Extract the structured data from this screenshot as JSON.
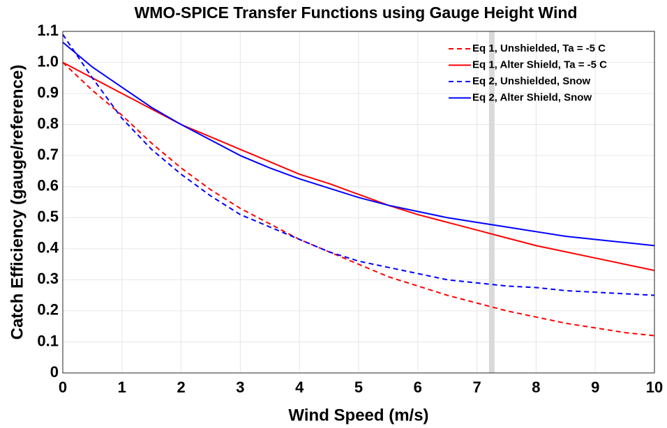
{
  "chart_data": {
    "type": "line",
    "title": "WMO-SPICE Transfer Functions using Gauge Height Wind",
    "x_label": "Wind Speed (m/s)",
    "y_label": "Catch Efficiency (gauge/reference)",
    "x": [
      0,
      0.5,
      1,
      1.5,
      2,
      2.5,
      3,
      3.5,
      4,
      4.5,
      5,
      5.5,
      6,
      6.5,
      7,
      7.5,
      8,
      8.5,
      9,
      9.5,
      10
    ],
    "series": [
      {
        "name": "Eq 1, Unshielded, Ta = -5 C",
        "color": "#ff0000",
        "dashed": true,
        "values": [
          1.0,
          0.91,
          0.83,
          0.74,
          0.66,
          0.59,
          0.53,
          0.48,
          0.43,
          0.39,
          0.35,
          0.31,
          0.28,
          0.25,
          0.225,
          0.2,
          0.18,
          0.16,
          0.145,
          0.13,
          0.12
        ]
      },
      {
        "name": "Eq 1, Alter Shield, Ta = -5 C",
        "color": "#ff0000",
        "dashed": false,
        "values": [
          1.0,
          0.95,
          0.9,
          0.85,
          0.8,
          0.76,
          0.72,
          0.68,
          0.64,
          0.61,
          0.575,
          0.54,
          0.51,
          0.485,
          0.46,
          0.435,
          0.41,
          0.39,
          0.37,
          0.35,
          0.33
        ]
      },
      {
        "name": "Eq 2, Unshielded, Snow",
        "color": "#0000ff",
        "dashed": true,
        "values": [
          1.09,
          0.95,
          0.82,
          0.72,
          0.64,
          0.57,
          0.51,
          0.47,
          0.43,
          0.39,
          0.36,
          0.34,
          0.32,
          0.3,
          0.29,
          0.28,
          0.275,
          0.265,
          0.26,
          0.255,
          0.25
        ]
      },
      {
        "name": "Eq 2, Alter Shield, Snow",
        "color": "#0000ff",
        "dashed": false,
        "values": [
          1.065,
          0.985,
          0.92,
          0.855,
          0.8,
          0.75,
          0.7,
          0.66,
          0.625,
          0.595,
          0.565,
          0.54,
          0.52,
          0.5,
          0.485,
          0.47,
          0.455,
          0.44,
          0.43,
          0.42,
          0.41
        ]
      }
    ],
    "reference_line": {
      "x": 7.25,
      "color": "#d9d9d9"
    },
    "xlim": [
      0,
      10
    ],
    "xticks": [
      0,
      1,
      2,
      3,
      4,
      5,
      6,
      7,
      8,
      9,
      10
    ],
    "ylim": [
      0,
      1.1
    ],
    "yticks": [
      0,
      0.1,
      0.2,
      0.3,
      0.4,
      0.5,
      0.6,
      0.7,
      0.8,
      0.9,
      {
        "value": 1,
        "label": "1.0"
      },
      1.1
    ],
    "grid": true,
    "legend": "top-right"
  }
}
